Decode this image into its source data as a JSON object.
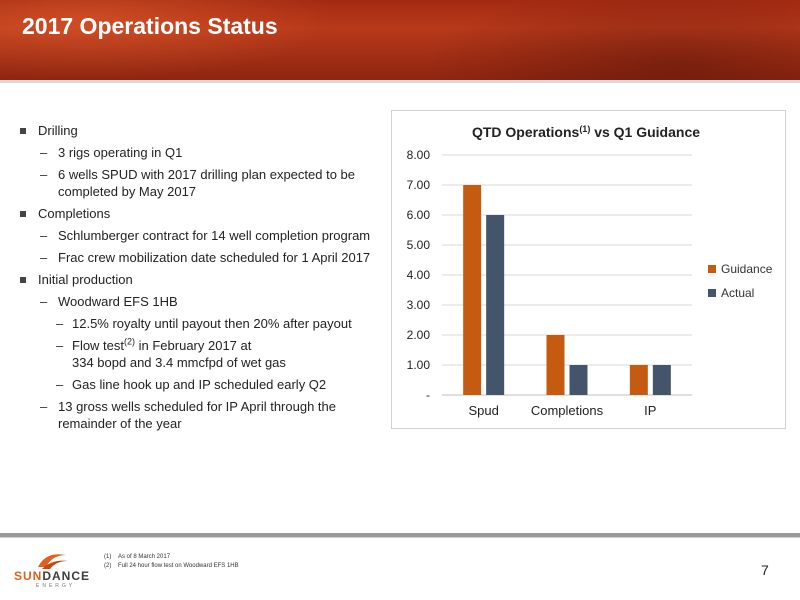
{
  "slide": {
    "title": "2017 Operations Status",
    "page_number": "7"
  },
  "bullets": {
    "drilling": {
      "label": "Drilling",
      "items": [
        "3 rigs operating in Q1",
        "6 wells SPUD with 2017 drilling plan expected to be completed by May 2017"
      ]
    },
    "completions": {
      "label": "Completions",
      "items": [
        "Schlumberger contract for 14 well completion program",
        "Frac crew mobilization date scheduled for 1 April 2017"
      ]
    },
    "initial_production": {
      "label": "Initial production",
      "well": "Woodward EFS 1HB",
      "well_items": [
        "12.5% royalty until payout then 20% after payout",
        "Gas line hook up and IP scheduled early Q2"
      ],
      "flow_test": {
        "prefix": "Flow test",
        "sup": "(2)",
        "suffix": " in February 2017 at",
        "line2": "334 bopd and 3.4 mmcfpd of wet gas"
      },
      "gross_wells": "13 gross wells scheduled for IP April through the remainder of the year"
    }
  },
  "chart_data": {
    "type": "bar",
    "title": "QTD Operations(1) vs Q1 Guidance",
    "title_main": "QTD Operations",
    "title_sup": "(1)",
    "title_tail": " vs Q1 Guidance",
    "categories": [
      "Spud",
      "Completions",
      "IP"
    ],
    "series": [
      {
        "name": "Guidance",
        "values": [
          7,
          2,
          1
        ],
        "color": "#c55a11"
      },
      {
        "name": "Actual",
        "values": [
          6,
          1,
          1
        ],
        "color": "#44546a"
      }
    ],
    "ylim": [
      0,
      8
    ],
    "yticks": [
      "-",
      "1.00",
      "2.00",
      "3.00",
      "4.00",
      "5.00",
      "6.00",
      "7.00",
      "8.00"
    ],
    "grid": true,
    "legend": "right"
  },
  "footnotes": [
    {
      "num": "(1)",
      "text": "As of 8 March 2017"
    },
    {
      "num": "(2)",
      "text": "Full 24 hour flow test on Woodward EFS 1HB"
    }
  ],
  "logo": {
    "word_part1": "SUN",
    "word_part2": "DANCE",
    "sub": "ENERGY",
    "colors": {
      "orange": "#e0601e",
      "gray": "#3c3c3c"
    }
  }
}
